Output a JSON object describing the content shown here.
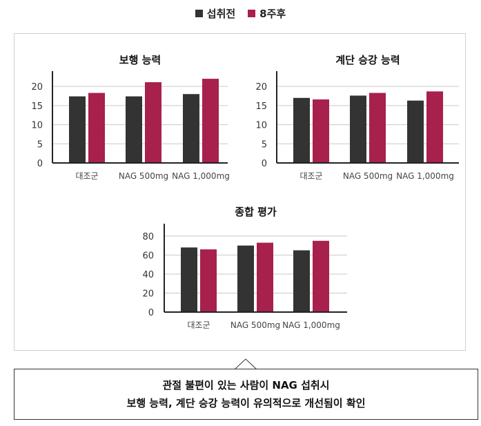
{
  "legend": [
    {
      "label": "섭취전",
      "color": "#333333"
    },
    {
      "label": "8주후",
      "color": "#a8204c"
    }
  ],
  "chart_data": [
    {
      "type": "bar",
      "title": "보행 능력",
      "categories": [
        "대조군",
        "NAG 500mg",
        "NAG 1,000mg"
      ],
      "series": [
        {
          "name": "섭취전",
          "values": [
            17.4,
            17.4,
            18.0
          ]
        },
        {
          "name": "8주후",
          "values": [
            18.3,
            21.1,
            22.0
          ]
        }
      ],
      "yticks": [
        0,
        5,
        10,
        15,
        20
      ],
      "ylim": [
        0,
        24
      ]
    },
    {
      "type": "bar",
      "title": "계단 승강 능력",
      "categories": [
        "대조군",
        "NAG 500mg",
        "NAG 1,000mg"
      ],
      "series": [
        {
          "name": "섭취전",
          "values": [
            17.0,
            17.6,
            16.3
          ]
        },
        {
          "name": "8주후",
          "values": [
            16.6,
            18.3,
            18.7
          ]
        }
      ],
      "yticks": [
        0,
        5,
        10,
        15,
        20
      ],
      "ylim": [
        0,
        24
      ]
    },
    {
      "type": "bar",
      "title": "종합 평가",
      "categories": [
        "대조군",
        "NAG 500mg",
        "NAG 1,000mg"
      ],
      "series": [
        {
          "name": "섭취전",
          "values": [
            68,
            70,
            65
          ]
        },
        {
          "name": "8주후",
          "values": [
            66,
            73,
            75
          ]
        }
      ],
      "yticks": [
        0,
        20,
        40,
        60,
        80
      ],
      "ylim": [
        0,
        93
      ]
    }
  ],
  "caption": {
    "line1": "관절 불편이 있는 사람이 NAG 섭취시",
    "line2": "보행 능력, 계단 승강 능력이 유의적으로 개선됨이 확인"
  }
}
